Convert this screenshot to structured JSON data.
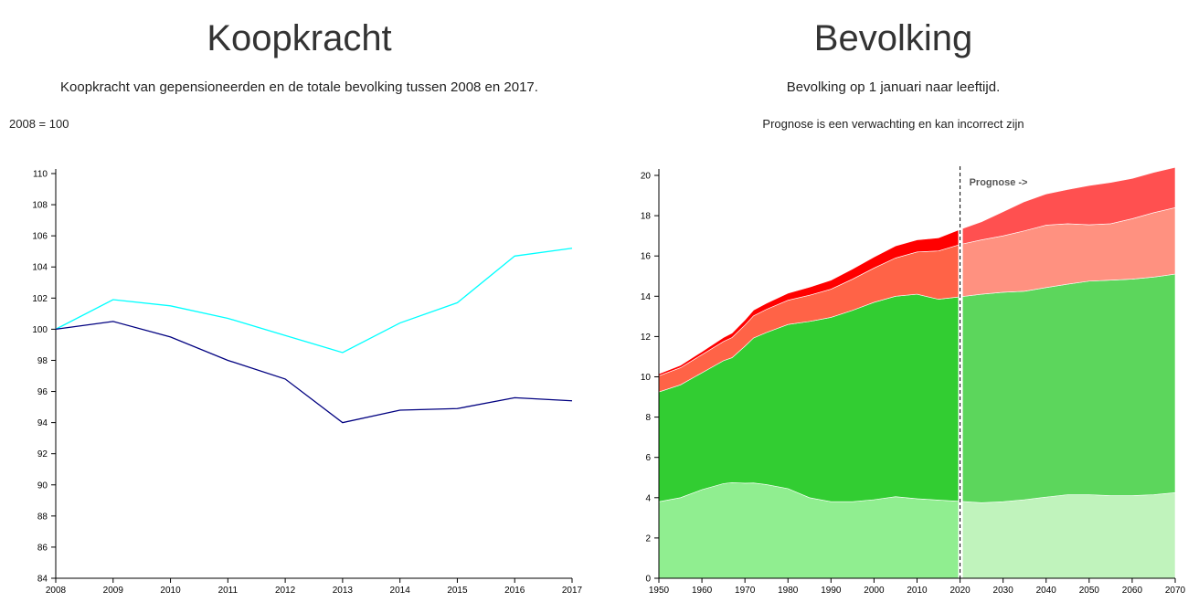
{
  "left": {
    "title": "Koopkracht",
    "subtitle": "Koopkracht van gepensioneerden en de totale bevolking tussen 2008 en 2017.",
    "note": "2008 = 100"
  },
  "right": {
    "title": "Bevolking",
    "subtitle": "Bevolking op 1 januari naar leeftijd.",
    "note": "Prognose is een verwachting en kan incorrect zijn",
    "prognose_label": "Prognose ->"
  },
  "chart_data": [
    {
      "type": "line",
      "x": [
        2008,
        2009,
        2010,
        2011,
        2012,
        2013,
        2014,
        2015,
        2016,
        2017
      ],
      "xlim": [
        2008,
        2017
      ],
      "ylim": [
        84,
        110
      ],
      "yticks": [
        84,
        86,
        88,
        90,
        92,
        94,
        96,
        98,
        100,
        102,
        104,
        106,
        108,
        110
      ],
      "xlabel": "",
      "ylabel": "",
      "grid": false,
      "series": [
        {
          "color": "#00ffff",
          "values": [
            100,
            101.9,
            101.5,
            100.7,
            99.6,
            98.5,
            100.4,
            101.7,
            104.7,
            105.2
          ]
        },
        {
          "color": "#000080",
          "values": [
            100,
            100.5,
            99.5,
            98.0,
            96.8,
            94.0,
            94.8,
            94.9,
            95.6,
            95.4
          ]
        }
      ]
    },
    {
      "type": "area",
      "stacked": true,
      "x": [
        1950,
        1955,
        1960,
        1965,
        1967,
        1970,
        1972,
        1975,
        1980,
        1985,
        1990,
        1995,
        2000,
        2005,
        2010,
        2015,
        2020,
        2025,
        2030,
        2035,
        2040,
        2045,
        2050,
        2055,
        2060,
        2065,
        2070
      ],
      "split_year": 2020,
      "xlim": [
        1950,
        2070
      ],
      "ylim": [
        0,
        20
      ],
      "yticks": [
        0,
        2,
        4,
        6,
        8,
        10,
        12,
        14,
        16,
        18,
        20
      ],
      "xticks": [
        1950,
        1960,
        1970,
        1980,
        1990,
        2000,
        2010,
        2020,
        2030,
        2040,
        2050,
        2060,
        2070
      ],
      "xlabel": "",
      "ylabel": "",
      "grid": false,
      "series": [
        {
          "color": "#90ee90",
          "color_forecast": "#c0f3bc",
          "values": [
            3.8,
            4.0,
            4.4,
            4.7,
            4.75,
            4.72,
            4.73,
            4.65,
            4.45,
            4.0,
            3.8,
            3.8,
            3.9,
            4.05,
            3.95,
            3.88,
            3.82,
            3.75,
            3.8,
            3.9,
            4.03,
            4.15,
            4.15,
            4.1,
            4.1,
            4.15,
            4.25
          ]
        },
        {
          "color": "#32cd32",
          "color_forecast": "#5cd65c",
          "values": [
            5.45,
            5.6,
            5.8,
            6.1,
            6.2,
            6.8,
            7.2,
            7.55,
            8.15,
            8.75,
            9.15,
            9.5,
            9.8,
            9.95,
            10.15,
            9.97,
            10.15,
            10.35,
            10.4,
            10.35,
            10.4,
            10.45,
            10.6,
            10.7,
            10.75,
            10.8,
            10.85
          ]
        },
        {
          "color": "#ff6347",
          "color_forecast": "#ff9180",
          "values": [
            0.8,
            0.85,
            0.9,
            0.95,
            1.0,
            1.05,
            1.1,
            1.15,
            1.2,
            1.3,
            1.4,
            1.55,
            1.7,
            1.9,
            2.1,
            2.4,
            2.6,
            2.7,
            2.8,
            3.0,
            3.1,
            3.0,
            2.8,
            2.8,
            3.0,
            3.2,
            3.3
          ]
        },
        {
          "color": "#ff0000",
          "color_forecast": "#ff5050",
          "values": [
            0.1,
            0.12,
            0.15,
            0.2,
            0.22,
            0.25,
            0.28,
            0.3,
            0.35,
            0.4,
            0.45,
            0.5,
            0.55,
            0.6,
            0.6,
            0.65,
            0.75,
            0.9,
            1.2,
            1.45,
            1.55,
            1.7,
            1.95,
            2.05,
            2.0,
            2.0,
            2.0
          ]
        }
      ]
    }
  ]
}
